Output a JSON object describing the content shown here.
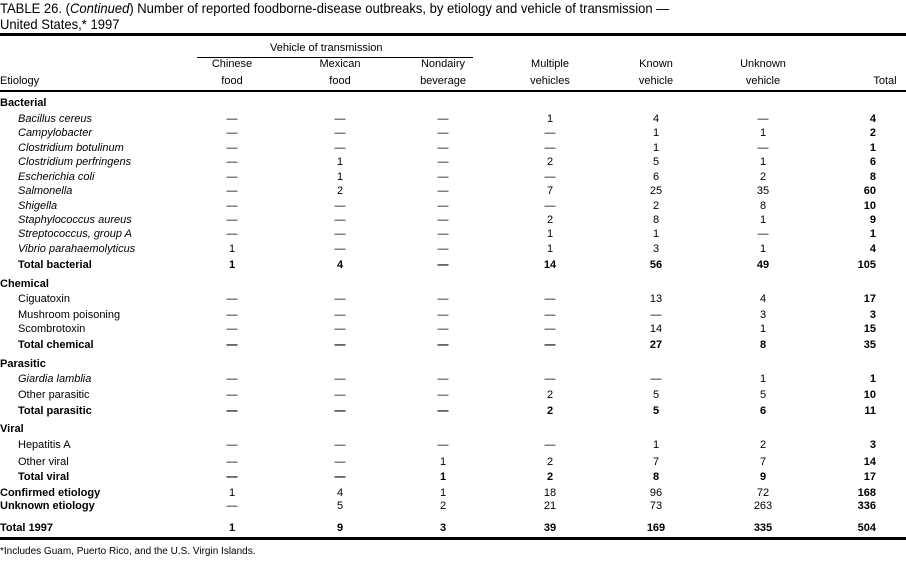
{
  "title": {
    "prefix": "TABLE 26. (",
    "continued": "Continued",
    "main": ") Number of reported foodborne-disease  outbreaks, by etiology and vehicle of transmission —",
    "line2": "United States,* 1997"
  },
  "header": {
    "group_label": "Vehicle of transmission",
    "etiology": "Etiology",
    "columns": [
      {
        "line1": "Chinese",
        "line2": "food"
      },
      {
        "line1": "Mexican",
        "line2": "food"
      },
      {
        "line1": "Nondairy",
        "line2": "beverage"
      },
      {
        "line1": "Multiple",
        "line2": "vehicles"
      },
      {
        "line1": "Known",
        "line2": "vehicle"
      },
      {
        "line1": "Unknown",
        "line2": "vehicle"
      },
      {
        "line1": "",
        "line2": "Total"
      }
    ]
  },
  "rows": [
    {
      "label": "Bacterial",
      "style": "section",
      "values": []
    },
    {
      "label": "Bacillus cereus",
      "style": "italic",
      "values": [
        "—",
        "—",
        "—",
        "1",
        "4",
        "—",
        "4"
      ]
    },
    {
      "label": "Campylobacter",
      "style": "italic",
      "values": [
        "—",
        "—",
        "—",
        "—",
        "1",
        "1",
        "2"
      ]
    },
    {
      "label": "Clostridium botulinum",
      "style": "italic",
      "values": [
        "—",
        "—",
        "—",
        "—",
        "1",
        "—",
        "1"
      ]
    },
    {
      "label": "Clostridium perfringens",
      "style": "italic",
      "values": [
        "—",
        "1",
        "—",
        "2",
        "5",
        "1",
        "6"
      ]
    },
    {
      "label": "Escherichia coli",
      "style": "italic",
      "values": [
        "—",
        "1",
        "—",
        "—",
        "6",
        "2",
        "8"
      ]
    },
    {
      "label": "Salmonella",
      "style": "italic",
      "values": [
        "—",
        "2",
        "—",
        "7",
        "25",
        "35",
        "60"
      ]
    },
    {
      "label": "Shigella",
      "style": "italic",
      "values": [
        "—",
        "—",
        "—",
        "—",
        "2",
        "8",
        "10"
      ]
    },
    {
      "label": "Staphylococcus aureus",
      "style": "italic",
      "values": [
        "—",
        "—",
        "—",
        "2",
        "8",
        "1",
        "9"
      ]
    },
    {
      "label": "Streptococcus, group A",
      "style": "italic",
      "values": [
        "—",
        "—",
        "—",
        "1",
        "1",
        "—",
        "1"
      ]
    },
    {
      "label": "Vibrio parahaemolyticus",
      "style": "italic",
      "values": [
        "1",
        "—",
        "—",
        "1",
        "3",
        "1",
        "4"
      ]
    },
    {
      "label": "Total bacterial",
      "style": "subtotal",
      "values": [
        "1",
        "4",
        "—",
        "14",
        "56",
        "49",
        "105"
      ]
    },
    {
      "label": "Chemical",
      "style": "section",
      "values": []
    },
    {
      "label": "Ciguatoxin",
      "style": "item",
      "values": [
        "—",
        "—",
        "—",
        "—",
        "13",
        "4",
        "17"
      ]
    },
    {
      "label": "Mushroom poisoning",
      "style": "item",
      "values": [
        "—",
        "—",
        "—",
        "—",
        "—",
        "3",
        "3"
      ]
    },
    {
      "label": "Scombrotoxin",
      "style": "item",
      "values": [
        "—",
        "—",
        "—",
        "—",
        "14",
        "1",
        "15"
      ]
    },
    {
      "label": "Total chemical",
      "style": "subtotal",
      "values": [
        "—",
        "—",
        "—",
        "—",
        "27",
        "8",
        "35"
      ]
    },
    {
      "label": "Parasitic",
      "style": "section",
      "values": []
    },
    {
      "label": "Giardia lamblia",
      "style": "italic",
      "values": [
        "—",
        "—",
        "—",
        "—",
        "—",
        "1",
        "1"
      ]
    },
    {
      "label": "Other parasitic",
      "style": "item",
      "values": [
        "—",
        "—",
        "—",
        "2",
        "5",
        "5",
        "10"
      ]
    },
    {
      "label": "Total parasitic",
      "style": "subtotal",
      "values": [
        "—",
        "—",
        "—",
        "2",
        "5",
        "6",
        "11"
      ]
    },
    {
      "label": "Viral",
      "style": "section",
      "values": []
    },
    {
      "label": "Hepatitis A",
      "style": "item",
      "values": [
        "—",
        "—",
        "—",
        "—",
        "1",
        "2",
        "3"
      ]
    },
    {
      "label": "Other viral",
      "style": "item",
      "values": [
        "—",
        "—",
        "1",
        "2",
        "7",
        "7",
        "14"
      ]
    },
    {
      "label": "Total viral",
      "style": "subtotal",
      "values": [
        "—",
        "—",
        "1",
        "2",
        "8",
        "9",
        "17"
      ]
    },
    {
      "label": "Confirmed etiology",
      "style": "summary",
      "values": [
        "1",
        "4",
        "1",
        "18",
        "96",
        "72",
        "168"
      ]
    },
    {
      "label": "Unknown etiology",
      "style": "summary",
      "values": [
        "—",
        "5",
        "2",
        "21",
        "73",
        "263",
        "336"
      ]
    },
    {
      "label": "Total 1997",
      "style": "grand",
      "values": [
        "1",
        "9",
        "3",
        "39",
        "169",
        "335",
        "504"
      ]
    }
  ],
  "footnote": "*Includes Guam, Puerto Rico, and the U.S. Virgin Islands."
}
